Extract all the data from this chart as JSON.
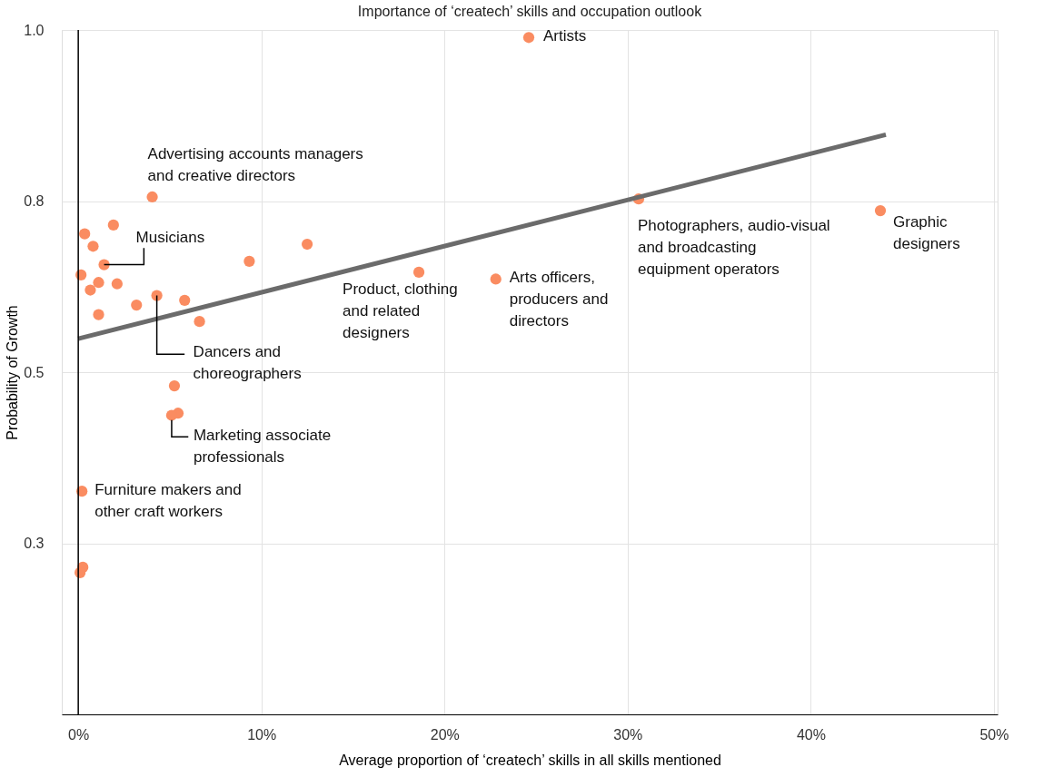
{
  "chart_data": {
    "type": "scatter",
    "title": "Importance of ‘createch’ skills and occupation outlook",
    "xlabel": "Average proportion of ‘createch’ skills in all skills mentioned",
    "ylabel": "Probability of Growth",
    "xlim": [
      -0.9,
      50.2
    ],
    "ylim": [
      0,
      1
    ],
    "xticks": [
      {
        "value": 0,
        "label": "0%"
      },
      {
        "value": 10,
        "label": "10%"
      },
      {
        "value": 20,
        "label": "20%"
      },
      {
        "value": 30,
        "label": "30%"
      },
      {
        "value": 40,
        "label": "40%"
      },
      {
        "value": 50,
        "label": "50%"
      }
    ],
    "yticks": [
      {
        "value": 0.25,
        "label": "0.3"
      },
      {
        "value": 0.5,
        "label": "0.5"
      },
      {
        "value": 0.75,
        "label": "0.8"
      },
      {
        "value": 1.0,
        "label": "1.0"
      }
    ],
    "grid": true,
    "marker": "circle",
    "ref_lines": [
      {
        "axis": "x",
        "value": 0,
        "color": "#000000"
      }
    ],
    "series": [
      {
        "color": "#fa8c61",
        "x": [
          24.6,
          4.04,
          1.92,
          0.35,
          0.81,
          12.5,
          1.41,
          0.15,
          9.34,
          1.11,
          2.12,
          0.66,
          4.29,
          5.81,
          3.18,
          1.11,
          6.62,
          18.6,
          22.8,
          30.6,
          43.8,
          5.25,
          5.45,
          5.1,
          0.2,
          0.25,
          0.1
        ],
        "values": [
          0.989,
          0.756,
          0.715,
          0.702,
          0.684,
          0.687,
          0.657,
          0.642,
          0.662,
          0.631,
          0.629,
          0.62,
          0.612,
          0.605,
          0.598,
          0.584,
          0.574,
          0.646,
          0.636,
          0.753,
          0.736,
          0.48,
          0.44,
          0.437,
          0.326,
          0.215,
          0.207
        ]
      },
      {
        "type": "line",
        "marker": "none",
        "color": "#6b6b6b",
        "x": [
          0,
          44.1
        ],
        "values": [
          0.549,
          0.847
        ]
      }
    ],
    "annotations": [
      {
        "text": "Artists",
        "x": 24.6,
        "y": 0.989
      },
      {
        "text": "Advertising accounts managers\nand creative directors",
        "x": 4.04,
        "y": 0.756
      },
      {
        "text": "Musicians",
        "x": 1.41,
        "y": 0.657
      },
      {
        "text": "Dancers and\nchoreographers",
        "x": 4.29,
        "y": 0.612
      },
      {
        "text": "Marketing associate\nprofessionals",
        "x": 5.1,
        "y": 0.437
      },
      {
        "text": "Furniture makers and\nother craft workers",
        "x": 0.2,
        "y": 0.326
      },
      {
        "text": "Product, clothing\nand related\ndesigners",
        "x": 18.6,
        "y": 0.646
      },
      {
        "text": "Arts officers,\nproducers and\ndirectors",
        "x": 22.8,
        "y": 0.636
      },
      {
        "text": "Photographers, audio-visual\nand broadcasting\nequipment operators",
        "x": 30.6,
        "y": 0.753
      },
      {
        "text": "Graphic\ndesigners",
        "x": 43.8,
        "y": 0.736
      }
    ]
  }
}
